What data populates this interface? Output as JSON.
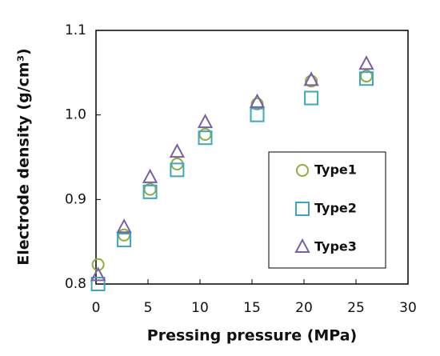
{
  "chart_data": {
    "type": "scatter",
    "x_label": "Pressing pressure (MPa)",
    "y_label": "Electrode density (g/cm³)",
    "x": [
      0.2,
      2.7,
      5.2,
      7.8,
      10.5,
      15.5,
      20.7,
      26
    ],
    "series": [
      {
        "name": "Type1",
        "color": "#8fae3c",
        "marker": "circle",
        "values": [
          0.823,
          0.858,
          0.912,
          0.942,
          0.977,
          1.013,
          1.04,
          1.046
        ]
      },
      {
        "name": "Type2",
        "color": "#3aa8c0",
        "marker": "square",
        "values": [
          0.8,
          0.852,
          0.909,
          0.935,
          0.973,
          1.0,
          1.02,
          1.043
        ]
      },
      {
        "name": "Type3",
        "color": "#7a5fa8",
        "marker": "triangle",
        "values": [
          0.81,
          0.867,
          0.926,
          0.956,
          0.991,
          1.015,
          1.041,
          1.06
        ]
      }
    ],
    "xlim": [
      0,
      30
    ],
    "xticks": [
      0,
      5,
      10,
      15,
      20,
      25,
      30
    ],
    "ylim": [
      0.8,
      1.1
    ],
    "yticks": [
      0.8,
      0.9,
      {
        "value": 1,
        "label": "1.0"
      },
      1.1
    ],
    "grid": false,
    "legend": "right"
  }
}
